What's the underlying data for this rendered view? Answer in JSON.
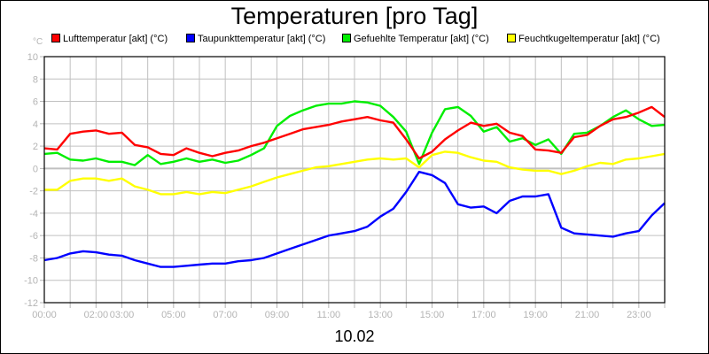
{
  "chart_data": {
    "type": "line",
    "title": "Temperaturen [pro Tag]",
    "xlabel": "10.02",
    "ylabel": "°C",
    "ylim": [
      -12,
      10
    ],
    "yticks": [
      10,
      8,
      6,
      4,
      2,
      0,
      -2,
      -4,
      -6,
      -8,
      -10,
      -12
    ],
    "xlim": [
      0,
      24
    ],
    "xtick_labels": [
      {
        "x": 0,
        "label": "00:00"
      },
      {
        "x": 2,
        "label": "02:00"
      },
      {
        "x": 3,
        "label": "03:00"
      },
      {
        "x": 5,
        "label": "05:00"
      },
      {
        "x": 7,
        "label": "07:00"
      },
      {
        "x": 9,
        "label": "09:00"
      },
      {
        "x": 11,
        "label": "11:00"
      },
      {
        "x": 13,
        "label": "13:00"
      },
      {
        "x": 15,
        "label": "15:00"
      },
      {
        "x": 17,
        "label": "17:00"
      },
      {
        "x": 19,
        "label": "19:00"
      },
      {
        "x": 21,
        "label": "21:00"
      },
      {
        "x": 23,
        "label": "23:00"
      }
    ],
    "grid": true,
    "legend_position": "top",
    "x": [
      0,
      0.5,
      1,
      1.5,
      2,
      2.5,
      3,
      3.5,
      4,
      4.5,
      5,
      5.5,
      6,
      6.5,
      7,
      7.5,
      8,
      8.5,
      9,
      9.5,
      10,
      10.5,
      11,
      11.5,
      12,
      12.5,
      13,
      13.5,
      14,
      14.5,
      15,
      15.5,
      16,
      16.5,
      17,
      17.5,
      18,
      18.5,
      19,
      19.5,
      20,
      20.5,
      21,
      21.5,
      22,
      22.5,
      23,
      23.5,
      24
    ],
    "series": [
      {
        "name": "Lufttemperatur [akt] (°C)",
        "color": "#ff0000",
        "values": [
          1.8,
          1.7,
          3.1,
          3.3,
          3.4,
          3.1,
          3.2,
          2.1,
          1.9,
          1.3,
          1.2,
          1.8,
          1.4,
          1.1,
          1.4,
          1.6,
          2.0,
          2.3,
          2.7,
          3.1,
          3.5,
          3.7,
          3.9,
          4.2,
          4.4,
          4.6,
          4.3,
          4.1,
          2.6,
          0.9,
          1.5,
          2.6,
          3.4,
          4.1,
          3.8,
          4.0,
          3.2,
          2.9,
          1.7,
          1.6,
          1.4,
          2.8,
          3.0,
          3.8,
          4.4,
          4.6,
          5.0,
          5.5,
          4.6
        ]
      },
      {
        "name": "Taupunkttemperatur [akt] (°C)",
        "color": "#0000ff",
        "values": [
          -8.2,
          -8.0,
          -7.6,
          -7.4,
          -7.5,
          -7.7,
          -7.8,
          -8.2,
          -8.5,
          -8.8,
          -8.8,
          -8.7,
          -8.6,
          -8.5,
          -8.5,
          -8.3,
          -8.2,
          -8.0,
          -7.6,
          -7.2,
          -6.8,
          -6.4,
          -6.0,
          -5.8,
          -5.6,
          -5.2,
          -4.3,
          -3.6,
          -2.1,
          -0.3,
          -0.6,
          -1.3,
          -3.2,
          -3.5,
          -3.4,
          -4.0,
          -2.9,
          -2.5,
          -2.5,
          -2.3,
          -5.3,
          -5.8,
          -5.9,
          -6.0,
          -6.1,
          -5.8,
          -5.6,
          -4.2,
          -3.1
        ]
      },
      {
        "name": "Gefuehlte Temperatur [akt] (°C)",
        "color": "#00ee00",
        "values": [
          1.3,
          1.4,
          0.8,
          0.7,
          0.9,
          0.6,
          0.6,
          0.3,
          1.2,
          0.4,
          0.6,
          0.9,
          0.6,
          0.8,
          0.5,
          0.7,
          1.2,
          1.8,
          3.8,
          4.7,
          5.2,
          5.6,
          5.8,
          5.8,
          6.0,
          5.9,
          5.6,
          4.6,
          3.3,
          0.4,
          3.2,
          5.3,
          5.5,
          4.7,
          3.3,
          3.7,
          2.4,
          2.7,
          2.1,
          2.6,
          1.3,
          3.1,
          3.2,
          3.8,
          4.6,
          5.2,
          4.4,
          3.8,
          3.9
        ]
      },
      {
        "name": "Feuchtkugeltemperatur [akt] (°C)",
        "color": "#ffff00",
        "values": [
          -1.9,
          -1.9,
          -1.1,
          -0.9,
          -0.9,
          -1.1,
          -0.9,
          -1.6,
          -1.9,
          -2.3,
          -2.3,
          -2.1,
          -2.3,
          -2.1,
          -2.2,
          -1.9,
          -1.6,
          -1.2,
          -0.8,
          -0.5,
          -0.2,
          0.1,
          0.2,
          0.4,
          0.6,
          0.8,
          0.9,
          0.8,
          0.9,
          0.1,
          1.2,
          1.5,
          1.4,
          1.0,
          0.7,
          0.6,
          0.1,
          -0.1,
          -0.2,
          -0.2,
          -0.5,
          -0.2,
          0.2,
          0.5,
          0.4,
          0.8,
          0.9,
          1.1,
          1.3
        ]
      }
    ]
  },
  "legend": {
    "unit": "°C",
    "items": [
      {
        "label": "Lufttemperatur [akt] (°C)",
        "color": "#ff0000"
      },
      {
        "label": "Taupunkttemperatur [akt] (°C)",
        "color": "#0000ff"
      },
      {
        "label": "Gefuehlte Temperatur [akt] (°C)",
        "color": "#00ee00"
      },
      {
        "label": "Feuchtkugeltemperatur [akt] (°C)",
        "color": "#ffff00"
      }
    ]
  }
}
